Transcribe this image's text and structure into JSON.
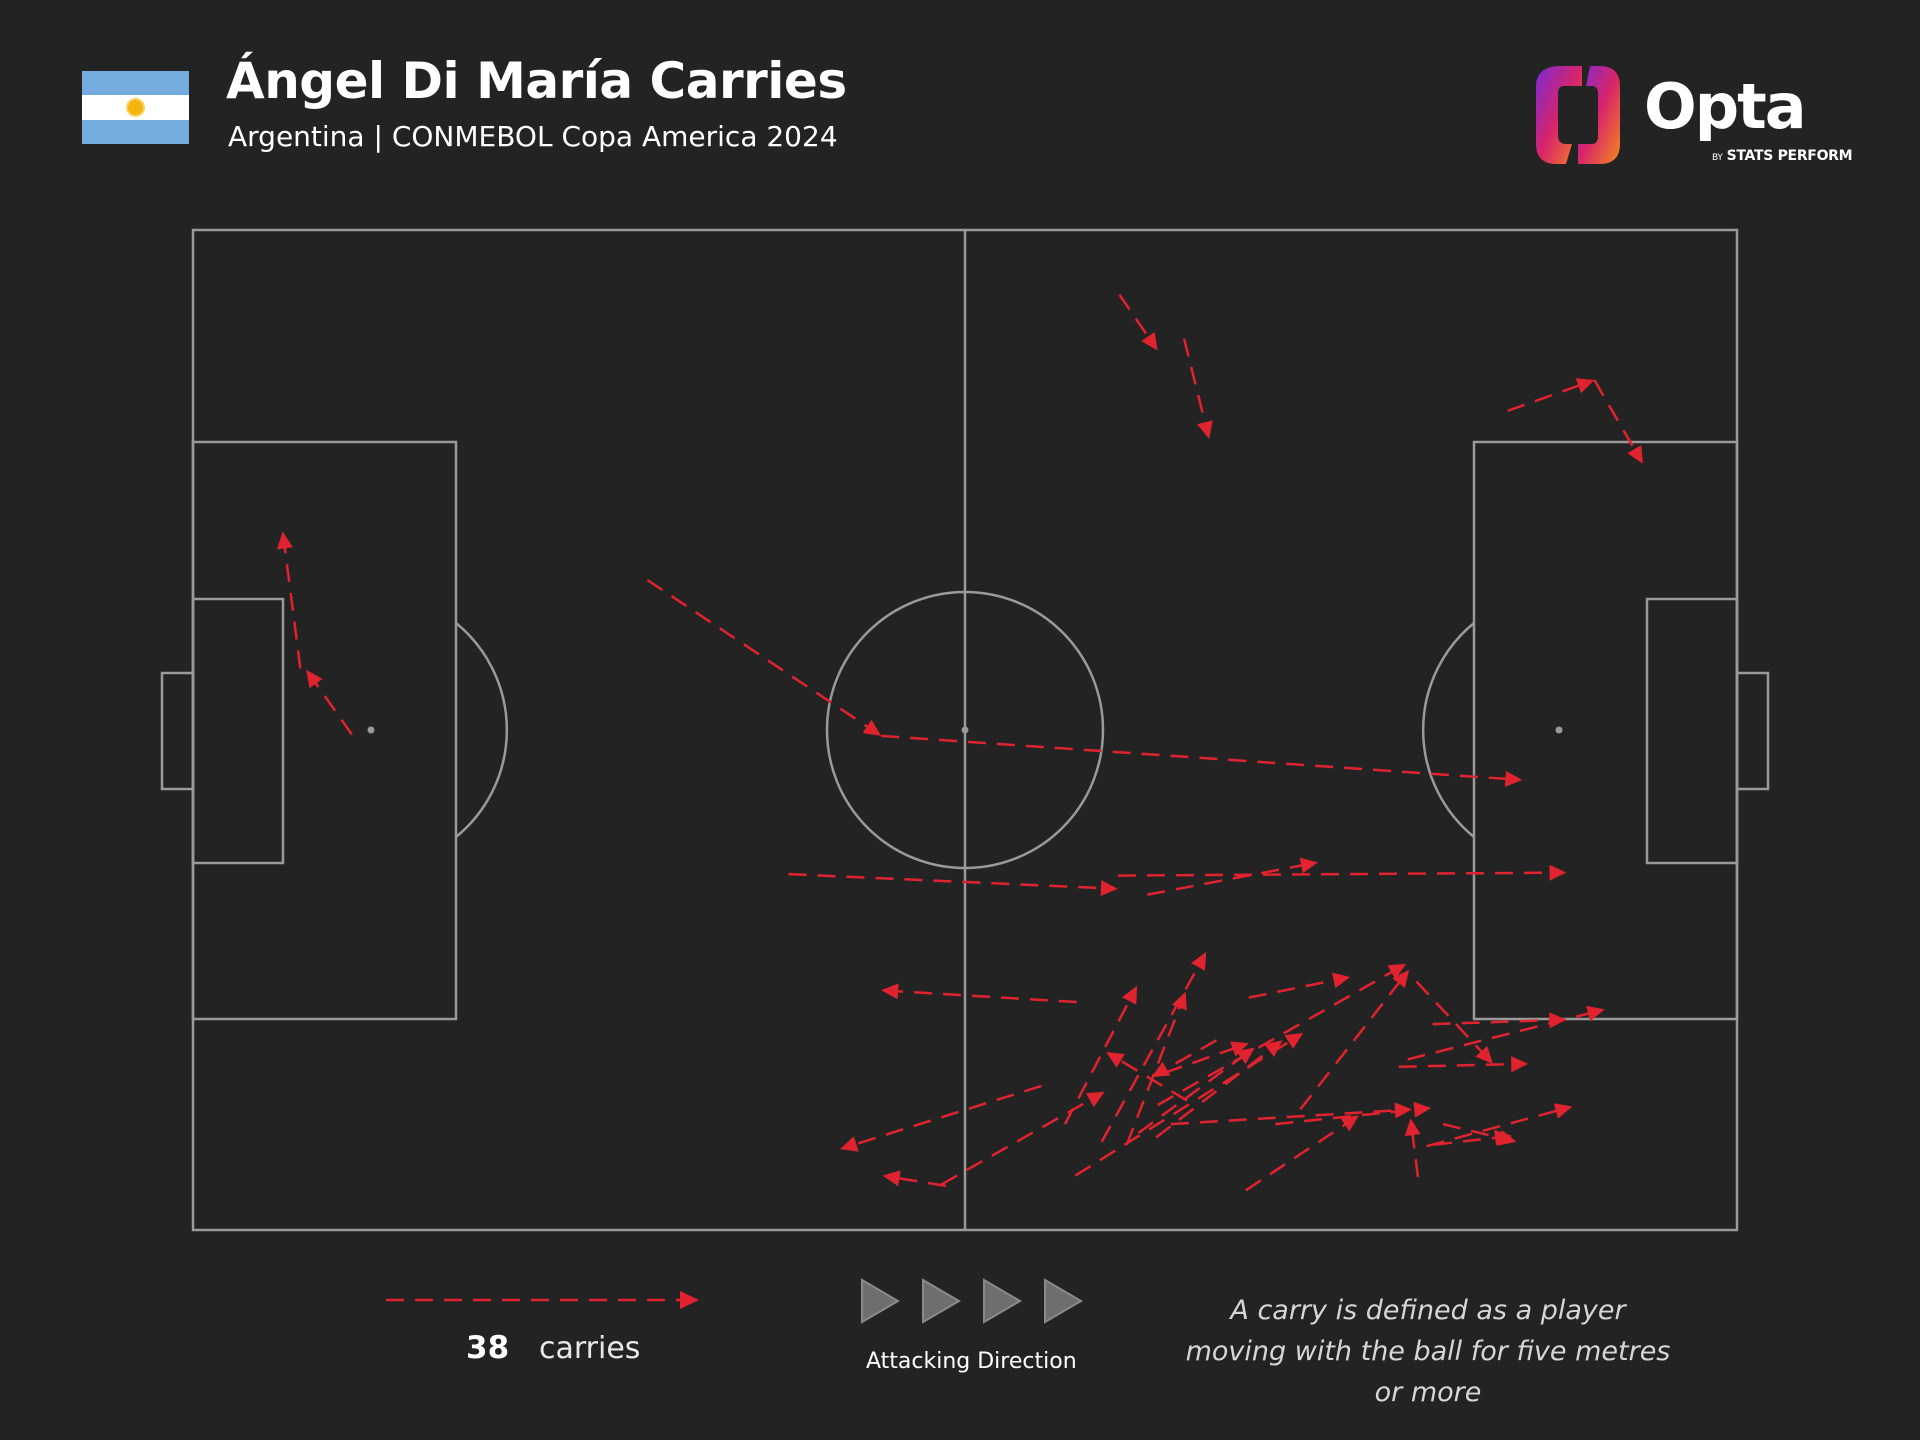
{
  "header": {
    "title": "Ángel Di María Carries",
    "subtitle": "Argentina | CONMEBOL Copa America 2024",
    "flag_colors": {
      "sky_blue": "#74ACDF",
      "white": "#ffffff",
      "sun": "#F6B40E"
    }
  },
  "logo": {
    "wordmark": "Opta",
    "tagline_by": "BY",
    "tagline": "STATS PERFORM",
    "gradient": [
      "#7a2ad8",
      "#d8246a",
      "#f58a1f"
    ]
  },
  "colors": {
    "background": "#232323",
    "pitch_lines": "#9a9a9a",
    "carry": "#e0232f",
    "direction_arrows": "#6e6e6e"
  },
  "legend": {
    "count": "38",
    "count_label": "carries",
    "direction_label": "Attacking Direction",
    "definition": "A carry is defined as a player moving with the ball for five metres or more"
  },
  "chart_data": {
    "type": "pitch_carry_map",
    "pitch_length_m": 105,
    "pitch_width_m": 68,
    "attacking_direction": "left-to-right",
    "total_carries": 38,
    "carries": [
      {
        "start": [
          63.0,
          63.6
        ],
        "end": [
          65.6,
          59.8
        ]
      },
      {
        "start": [
          67.4,
          60.6
        ],
        "end": [
          69.1,
          53.8
        ]
      },
      {
        "start": [
          89.4,
          55.7
        ],
        "end": [
          95.3,
          57.8
        ]
      },
      {
        "start": [
          95.3,
          57.8
        ],
        "end": [
          98.6,
          52.1
        ]
      },
      {
        "start": [
          10.8,
          33.7
        ],
        "end": [
          7.7,
          38.1
        ]
      },
      {
        "start": [
          7.3,
          38.2
        ],
        "end": [
          6.1,
          47.5
        ]
      },
      {
        "start": [
          30.9,
          44.2
        ],
        "end": [
          46.8,
          33.6
        ]
      },
      {
        "start": [
          46.8,
          33.6
        ],
        "end": [
          90.4,
          30.6
        ]
      },
      {
        "start": [
          40.5,
          24.2
        ],
        "end": [
          62.9,
          23.2
        ]
      },
      {
        "start": [
          62.9,
          24.1
        ],
        "end": [
          93.4,
          24.3
        ]
      },
      {
        "start": [
          64.9,
          22.8
        ],
        "end": [
          76.5,
          25.0
        ]
      },
      {
        "start": [
          60.1,
          15.5
        ],
        "end": [
          46.8,
          16.3
        ]
      },
      {
        "start": [
          57.7,
          9.8
        ],
        "end": [
          44.0,
          5.5
        ]
      },
      {
        "start": [
          51.2,
          3.0
        ],
        "end": [
          46.9,
          3.7
        ]
      },
      {
        "start": [
          50.9,
          3.1
        ],
        "end": [
          62.0,
          9.4
        ]
      },
      {
        "start": [
          59.3,
          7.2
        ],
        "end": [
          64.2,
          16.6
        ]
      },
      {
        "start": [
          60.0,
          3.7
        ],
        "end": [
          75.5,
          13.4
        ]
      },
      {
        "start": [
          61.8,
          6.0
        ],
        "end": [
          68.9,
          18.9
        ]
      },
      {
        "start": [
          63.5,
          5.8
        ],
        "end": [
          67.5,
          16.2
        ]
      },
      {
        "start": [
          65.5,
          6.3
        ],
        "end": [
          74.1,
          12.9
        ]
      },
      {
        "start": [
          66.1,
          10.7
        ],
        "end": [
          71.8,
          12.7
        ]
      },
      {
        "start": [
          71.8,
          15.8
        ],
        "end": [
          78.7,
          17.2
        ]
      },
      {
        "start": [
          69.6,
          12.9
        ],
        "end": [
          65.2,
          10.4
        ]
      },
      {
        "start": [
          67.6,
          8.8
        ],
        "end": [
          62.1,
          12.1
        ]
      },
      {
        "start": [
          64.3,
          6.6
        ],
        "end": [
          72.2,
          12.4
        ]
      },
      {
        "start": [
          65.6,
          8.5
        ],
        "end": [
          82.5,
          18.1
        ]
      },
      {
        "start": [
          66.5,
          7.2
        ],
        "end": [
          82.9,
          8.2
        ]
      },
      {
        "start": [
          71.6,
          2.7
        ],
        "end": [
          79.3,
          7.8
        ]
      },
      {
        "start": [
          73.6,
          7.2
        ],
        "end": [
          84.2,
          8.3
        ]
      },
      {
        "start": [
          75.3,
          8.2
        ],
        "end": [
          82.7,
          17.7
        ]
      },
      {
        "start": [
          83.2,
          16.9
        ],
        "end": [
          88.4,
          11.3
        ]
      },
      {
        "start": [
          84.3,
          14.0
        ],
        "end": [
          93.4,
          14.3
        ]
      },
      {
        "start": [
          82.6,
          11.6
        ],
        "end": [
          96.0,
          15.0
        ]
      },
      {
        "start": [
          82.0,
          11.1
        ],
        "end": [
          90.8,
          11.3
        ]
      },
      {
        "start": [
          83.9,
          5.7
        ],
        "end": [
          93.8,
          8.4
        ]
      },
      {
        "start": [
          84.4,
          5.8
        ],
        "end": [
          89.7,
          6.4
        ]
      },
      {
        "start": [
          85.0,
          7.2
        ],
        "end": [
          90.0,
          6.0
        ]
      },
      {
        "start": [
          83.3,
          3.6
        ],
        "end": [
          82.8,
          7.6
        ]
      }
    ]
  }
}
